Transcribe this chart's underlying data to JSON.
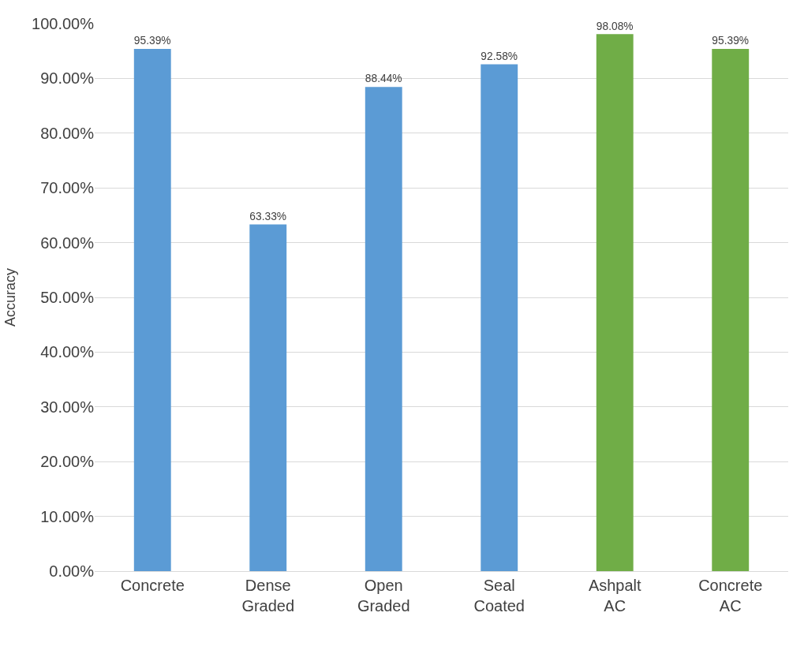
{
  "chart_data": {
    "type": "bar",
    "ylabel": "Accuracy",
    "categories": [
      "Concrete",
      "Dense\nGraded",
      "Open\nGraded",
      "Seal\nCoated",
      "Ashpalt\nAC",
      "Concrete\nAC"
    ],
    "values": [
      95.39,
      63.33,
      88.44,
      92.58,
      98.08,
      95.39
    ],
    "colors": [
      "#5b9bd5",
      "#5b9bd5",
      "#5b9bd5",
      "#5b9bd5",
      "#70ad47",
      "#70ad47"
    ],
    "value_labels": [
      "95.39%",
      "63.33%",
      "88.44%",
      "92.58%",
      "98.08%",
      "95.39%"
    ],
    "ylim": [
      0,
      100
    ],
    "yticks": [
      {
        "value": 0,
        "label": "0.00%"
      },
      {
        "value": 10,
        "label": "10.00%"
      },
      {
        "value": 20,
        "label": "20.00%"
      },
      {
        "value": 30,
        "label": "30.00%"
      },
      {
        "value": 40,
        "label": "40.00%"
      },
      {
        "value": 50,
        "label": "50.00%"
      },
      {
        "value": 60,
        "label": "60.00%"
      },
      {
        "value": 70,
        "label": "70.00%"
      },
      {
        "value": 80,
        "label": "80.00%"
      },
      {
        "value": 90,
        "label": "90.00%"
      },
      {
        "value": 100,
        "label": "100.00%"
      }
    ],
    "grid": "y",
    "legend": false
  }
}
